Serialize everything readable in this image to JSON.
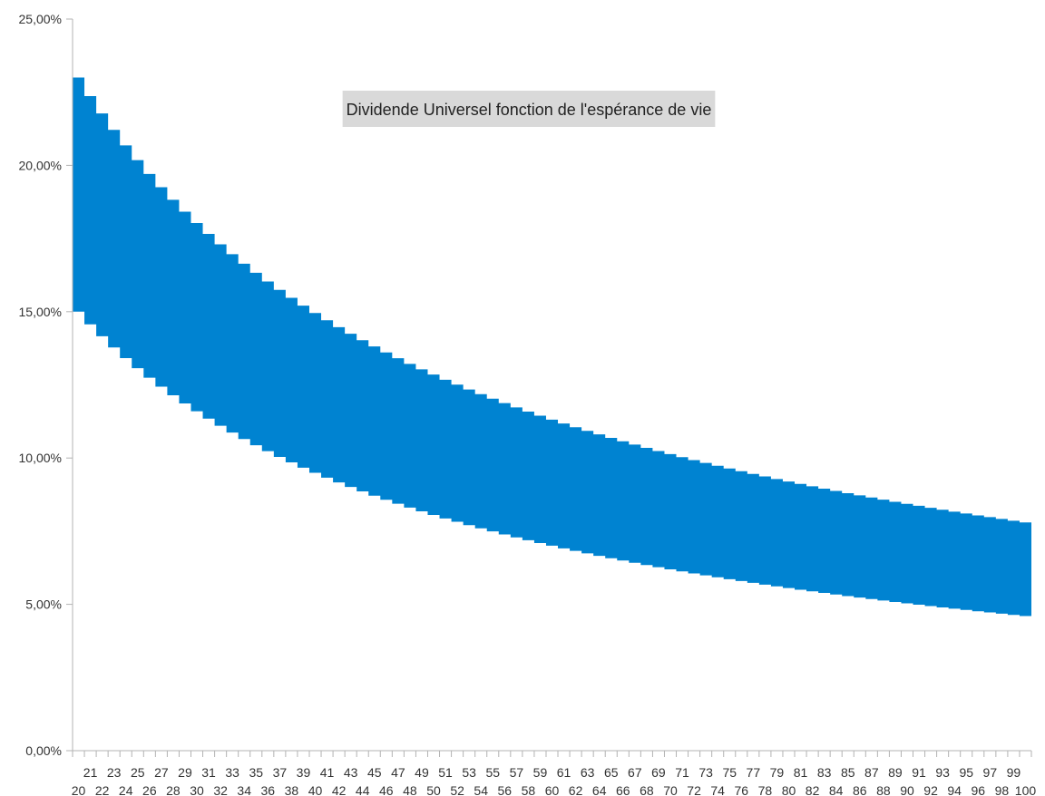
{
  "chart_data": {
    "type": "area",
    "title": "Dividende Universel fonction de l'espérance de vie",
    "xlabel": "",
    "ylabel": "",
    "x": [
      20,
      21,
      22,
      23,
      24,
      25,
      26,
      27,
      28,
      29,
      30,
      31,
      32,
      33,
      34,
      35,
      36,
      37,
      38,
      39,
      40,
      41,
      42,
      43,
      44,
      45,
      46,
      47,
      48,
      49,
      50,
      51,
      52,
      53,
      54,
      55,
      56,
      57,
      58,
      59,
      60,
      61,
      62,
      63,
      64,
      65,
      66,
      67,
      68,
      69,
      70,
      71,
      72,
      73,
      74,
      75,
      76,
      77,
      78,
      79,
      80,
      81,
      82,
      83,
      84,
      85,
      86,
      87,
      88,
      89,
      90,
      91,
      92,
      93,
      94,
      95,
      96,
      97,
      98,
      99,
      100
    ],
    "y_tick_labels": [
      "0,00%",
      "5,00%",
      "10,00%",
      "15,00%",
      "20,00%",
      "25,00%"
    ],
    "y_tick_values": [
      0,
      5,
      10,
      15,
      20,
      25
    ],
    "ylim": [
      0,
      25
    ],
    "band": {
      "upper_formula_hint": "ln(x/2)/x",
      "lower_formula_hint": "ln(x/2)/x * 0.65",
      "color": "#0083d1",
      "upper_at_20": 23.0,
      "lower_at_20": 15.0,
      "upper_at_100": 7.8,
      "lower_at_100": 4.6
    },
    "grid": false,
    "legend": "none"
  },
  "colors": {
    "axis": "#b3b3b3",
    "title_bg": "#d9d9d9",
    "fill": "#0083d1"
  }
}
